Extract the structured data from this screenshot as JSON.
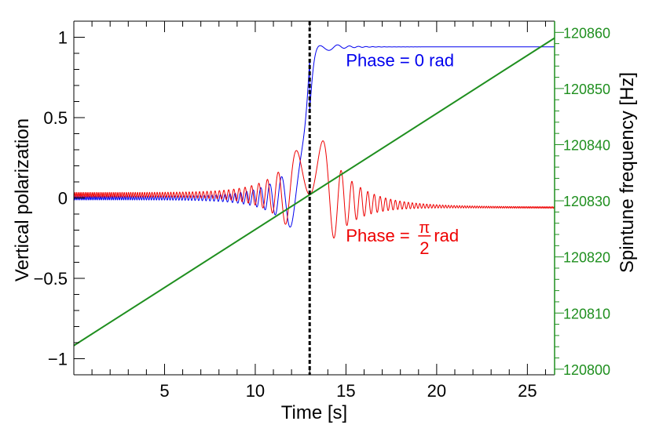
{
  "chart_data": {
    "type": "line",
    "title": "",
    "xlabel": "Time [s]",
    "ylabel": "Vertical polarization",
    "ylabel_right": "Spintune frequency [Hz]",
    "xlim": [
      0,
      26.5
    ],
    "ylim": [
      -1.1,
      1.1
    ],
    "ylim_right": [
      120799,
      120862
    ],
    "x_ticks": [
      5,
      10,
      15,
      20,
      25
    ],
    "y_ticks": [
      -1,
      -0.5,
      0,
      0.5,
      1
    ],
    "y_tick_labels": [
      "−1",
      "−0.5",
      "0",
      "0.5",
      "1"
    ],
    "y_right_ticks": [
      120800,
      120810,
      120820,
      120830,
      120840,
      120850,
      120860
    ],
    "marker": {
      "x": 13.0,
      "style": "dashed vertical line"
    },
    "grid": false,
    "colors": {
      "phase0": "#0000ee",
      "phasePi2": "#ee0000",
      "spintune": "#1f8f1f",
      "right_axis": "#1f8f1f",
      "marker": "#000000"
    },
    "series": [
      {
        "name": "Phase = 0 rad",
        "axis": "left",
        "x": [
          0,
          2,
          4,
          6,
          8,
          10,
          11,
          12,
          12.5,
          12.9,
          13.0,
          13.2,
          13.5,
          13.8,
          14.2,
          15,
          17,
          20,
          26.5
        ],
        "y": [
          0.0,
          0.0,
          0.0,
          0.0,
          0.0,
          0.0,
          0.0,
          0.0,
          0.1,
          0.5,
          0.75,
          0.88,
          0.85,
          0.97,
          0.92,
          0.94,
          0.94,
          0.94,
          0.94
        ]
      },
      {
        "name": "Phase = π/2 rad",
        "axis": "left",
        "x": [
          0,
          2,
          4,
          6,
          8,
          10,
          11,
          12,
          12.5,
          12.8,
          13.0,
          13.3,
          14,
          15,
          17,
          20,
          26.5
        ],
        "y": [
          0.02,
          0.02,
          0.02,
          0.02,
          0.01,
          0.0,
          0.0,
          0.0,
          0.3,
          0.52,
          0.0,
          -0.52,
          0.2,
          -0.05,
          -0.05,
          -0.06,
          -0.06
        ]
      },
      {
        "name": "Spintune frequency",
        "axis": "right",
        "x": [
          0,
          26.5
        ],
        "y": [
          120804.2,
          120859.0
        ]
      }
    ],
    "annotations": [
      {
        "text": "Phase = 0 rad",
        "series": "Phase = 0 rad",
        "x": 15.3,
        "y": 0.82
      },
      {
        "text_pre": "Phase = ",
        "frac_num": "π",
        "frac_den": "2",
        "text_post": "rad",
        "series": "Phase = π/2 rad",
        "x": 15.3,
        "y": -0.27
      }
    ]
  }
}
